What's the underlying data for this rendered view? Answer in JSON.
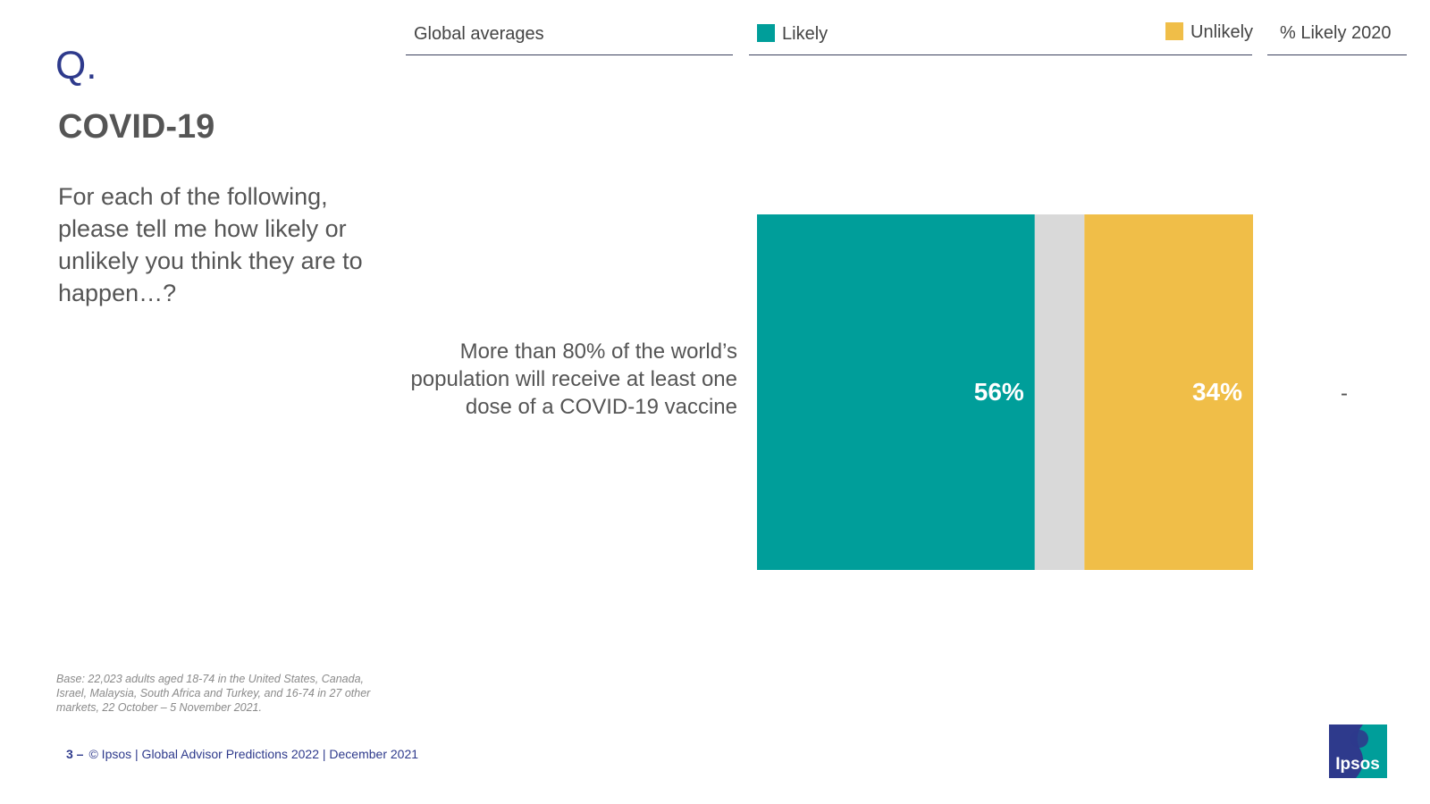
{
  "slide": {
    "q_mark": "Q.",
    "topic": "COVID-19",
    "question": "For each of the following, please tell me how likely or unlikely you think they are to happen…?",
    "base_note": "Base: 22,023 adults aged 18-74 in the United States, Canada, Israel, Malaysia, South Africa and Turkey, and 16-74 in 27 other markets, 22 October – 5 November 2021.",
    "footer": {
      "page_number": "3 –",
      "text": "© Ipsos | Global Advisor Predictions 2022 | December 2021"
    },
    "logo_text": "Ipsos"
  },
  "headers": {
    "global_averages": "Global averages",
    "likely": "Likely",
    "unlikely": "Unlikely",
    "likely_2020": "% Likely 2020"
  },
  "colors": {
    "likely": "#009e9a",
    "neutral": "#d9d9d9",
    "unlikely": "#f0be48",
    "brand": "#2e3a8c"
  },
  "chart_data": {
    "type": "bar",
    "orientation": "horizontal-stacked",
    "categories": [
      "More than 80% of the world’s population will receive at least one dose of a COVID-19 vaccine"
    ],
    "series": [
      {
        "name": "Likely",
        "values": [
          56
        ],
        "labels": [
          "56%"
        ]
      },
      {
        "name": "",
        "values": [
          10
        ],
        "labels": [
          ""
        ]
      },
      {
        "name": "Unlikely",
        "values": [
          34
        ],
        "labels": [
          "34%"
        ]
      }
    ],
    "xlim": [
      0,
      100
    ],
    "likely_2020": [
      "-"
    ]
  }
}
